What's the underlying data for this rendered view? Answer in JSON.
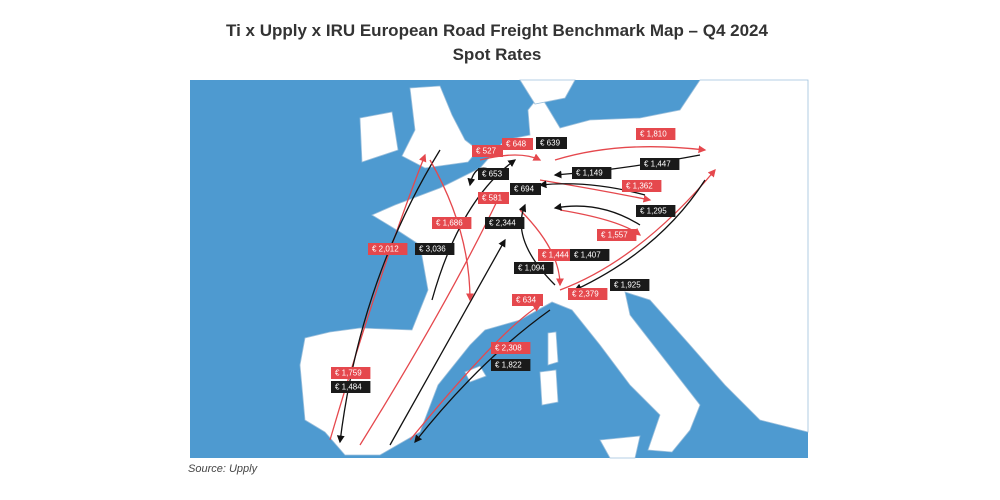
{
  "header": {
    "title": "Ti x Upply x IRU European Road Freight Benchmark Map – Q4 2024",
    "subtitle": "Spot Rates"
  },
  "map": {
    "labels": [
      {
        "text": "€ 1,810",
        "color": "#e5484d"
      },
      {
        "text": "€ 648",
        "color": "#e5484d"
      },
      {
        "text": "€ 527",
        "color": "#e5484d"
      },
      {
        "text": "€ 581",
        "color": "#e5484d"
      },
      {
        "text": "€ 1,686",
        "color": "#e5484d"
      },
      {
        "text": "€ 2,012",
        "color": "#e5484d"
      },
      {
        "text": "€ 1,362",
        "color": "#e5484d"
      },
      {
        "text": "€ 1,557",
        "color": "#e5484d"
      },
      {
        "text": "€ 1,444",
        "color": "#e5484d"
      },
      {
        "text": "€ 634",
        "color": "#e5484d"
      },
      {
        "text": "€ 2,379",
        "color": "#e5484d"
      },
      {
        "text": "€ 2,308",
        "color": "#e5484d"
      },
      {
        "text": "€ 1,759",
        "color": "#e5484d"
      },
      {
        "text": "€ 639",
        "color": "#1a1a1a"
      },
      {
        "text": "€ 1,447",
        "color": "#1a1a1a"
      },
      {
        "text": "€ 653",
        "color": "#1a1a1a"
      },
      {
        "text": "€ 694",
        "color": "#1a1a1a"
      },
      {
        "text": "€ 1,149",
        "color": "#1a1a1a"
      },
      {
        "text": "€ 1,295",
        "color": "#1a1a1a"
      },
      {
        "text": "€ 2,344",
        "color": "#1a1a1a"
      },
      {
        "text": "€ 3,036",
        "color": "#1a1a1a"
      },
      {
        "text": "€ 1,407",
        "color": "#1a1a1a"
      },
      {
        "text": "€ 1,094",
        "color": "#1a1a1a"
      },
      {
        "text": "€ 1,925",
        "color": "#1a1a1a"
      },
      {
        "text": "€ 1,822",
        "color": "#1a1a1a"
      },
      {
        "text": "€ 1,484",
        "color": "#1a1a1a"
      }
    ]
  },
  "footer": {
    "source": "Source: Upply"
  }
}
